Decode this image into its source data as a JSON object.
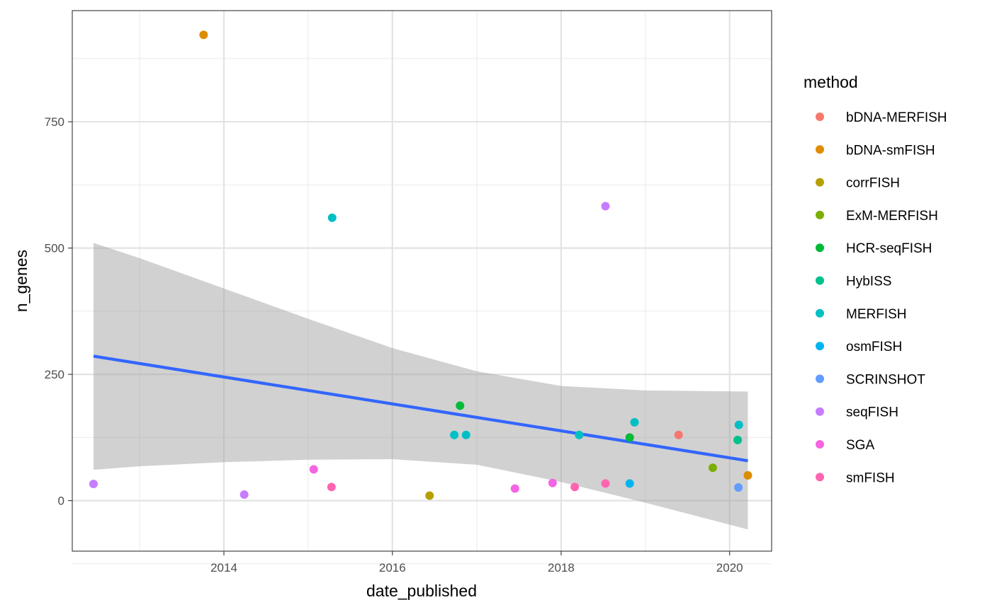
{
  "chart_data": {
    "type": "scatter",
    "xlabel": "date_published",
    "ylabel": "n_genes",
    "xlim": [
      "2012-03-15",
      "2020-07-01"
    ],
    "ylim": [
      -100,
      970
    ],
    "x_ticks": [
      {
        "date": "2014-01-01",
        "label": "2014"
      },
      {
        "date": "2016-01-01",
        "label": "2016"
      },
      {
        "date": "2018-01-01",
        "label": "2018"
      },
      {
        "date": "2020-01-01",
        "label": "2020"
      }
    ],
    "x_minor_ticks": [
      "2013-01-01",
      "2015-01-01",
      "2017-01-01",
      "2019-01-01"
    ],
    "y_ticks": [
      {
        "value": 0,
        "label": "0"
      },
      {
        "value": 250,
        "label": "250"
      },
      {
        "value": 500,
        "label": "500"
      },
      {
        "value": 750,
        "label": "750"
      }
    ],
    "y_minor_ticks": [
      -125,
      125,
      375,
      625,
      875
    ],
    "grid": true,
    "legend": {
      "title": "method",
      "position": "right",
      "entries": [
        {
          "name": "bDNA-MERFISH",
          "color": "#F8766D"
        },
        {
          "name": "bDNA-smFISH",
          "color": "#DE8C00"
        },
        {
          "name": "corrFISH",
          "color": "#B79F00"
        },
        {
          "name": "ExM-MERFISH",
          "color": "#7CAE00"
        },
        {
          "name": "HCR-seqFISH",
          "color": "#00BA38"
        },
        {
          "name": "HybISS",
          "color": "#00C08B"
        },
        {
          "name": "MERFISH",
          "color": "#00BFC4"
        },
        {
          "name": "osmFISH",
          "color": "#00B4F0"
        },
        {
          "name": "SCRINSHOT",
          "color": "#619CFF"
        },
        {
          "name": "seqFISH",
          "color": "#C77CFF"
        },
        {
          "name": "SGA",
          "color": "#F564E3"
        },
        {
          "name": "smFISH",
          "color": "#FF64B0"
        }
      ]
    },
    "points": [
      {
        "date": "2012-06-15",
        "n_genes": 33,
        "method": "seqFISH"
      },
      {
        "date": "2013-10-05",
        "n_genes": 922,
        "method": "bDNA-smFISH"
      },
      {
        "date": "2014-03-30",
        "n_genes": 12,
        "method": "seqFISH"
      },
      {
        "date": "2015-01-25",
        "n_genes": 62,
        "method": "SGA"
      },
      {
        "date": "2015-04-15",
        "n_genes": 560,
        "method": "MERFISH"
      },
      {
        "date": "2015-04-12",
        "n_genes": 27,
        "method": "smFISH"
      },
      {
        "date": "2016-06-10",
        "n_genes": 10,
        "method": "corrFISH"
      },
      {
        "date": "2016-09-25",
        "n_genes": 130,
        "method": "MERFISH"
      },
      {
        "date": "2016-10-20",
        "n_genes": 188,
        "method": "HCR-seqFISH"
      },
      {
        "date": "2016-11-15",
        "n_genes": 130,
        "method": "MERFISH"
      },
      {
        "date": "2017-06-15",
        "n_genes": 24,
        "method": "SGA"
      },
      {
        "date": "2017-11-25",
        "n_genes": 35,
        "method": "SGA"
      },
      {
        "date": "2018-03-01",
        "n_genes": 27,
        "method": "smFISH"
      },
      {
        "date": "2018-03-20",
        "n_genes": 130,
        "method": "MERFISH"
      },
      {
        "date": "2018-07-12",
        "n_genes": 583,
        "method": "seqFISH"
      },
      {
        "date": "2018-07-12",
        "n_genes": 34,
        "method": "smFISH"
      },
      {
        "date": "2018-10-25",
        "n_genes": 125,
        "method": "HCR-seqFISH"
      },
      {
        "date": "2018-10-25",
        "n_genes": 34,
        "method": "osmFISH"
      },
      {
        "date": "2018-11-15",
        "n_genes": 155,
        "method": "MERFISH"
      },
      {
        "date": "2019-05-25",
        "n_genes": 130,
        "method": "bDNA-MERFISH"
      },
      {
        "date": "2019-10-20",
        "n_genes": 65,
        "method": "ExM-MERFISH"
      },
      {
        "date": "2020-02-05",
        "n_genes": 120,
        "method": "HybISS"
      },
      {
        "date": "2020-02-10",
        "n_genes": 150,
        "method": "MERFISH"
      },
      {
        "date": "2020-02-08",
        "n_genes": 26,
        "method": "SCRINSHOT"
      },
      {
        "date": "2020-03-20",
        "n_genes": 50,
        "method": "bDNA-smFISH"
      }
    ],
    "smooth": {
      "method": "lm",
      "color": "#3366FF",
      "ribbon_color": "#999999",
      "line": [
        {
          "date": "2012-06-15",
          "n_genes": 286
        },
        {
          "date": "2020-03-20",
          "n_genes": 79
        }
      ],
      "ribbon": [
        {
          "date": "2012-06-15",
          "lower": 61,
          "upper": 510
        },
        {
          "date": "2013-01-01",
          "lower": 68,
          "upper": 480
        },
        {
          "date": "2014-01-01",
          "lower": 76,
          "upper": 420
        },
        {
          "date": "2015-01-01",
          "lower": 81,
          "upper": 360
        },
        {
          "date": "2016-01-01",
          "lower": 82,
          "upper": 302
        },
        {
          "date": "2017-01-01",
          "lower": 71,
          "upper": 256
        },
        {
          "date": "2018-01-01",
          "lower": 37,
          "upper": 227
        },
        {
          "date": "2019-01-01",
          "lower": -4,
          "upper": 218
        },
        {
          "date": "2020-03-20",
          "lower": -57,
          "upper": 216
        }
      ]
    }
  }
}
